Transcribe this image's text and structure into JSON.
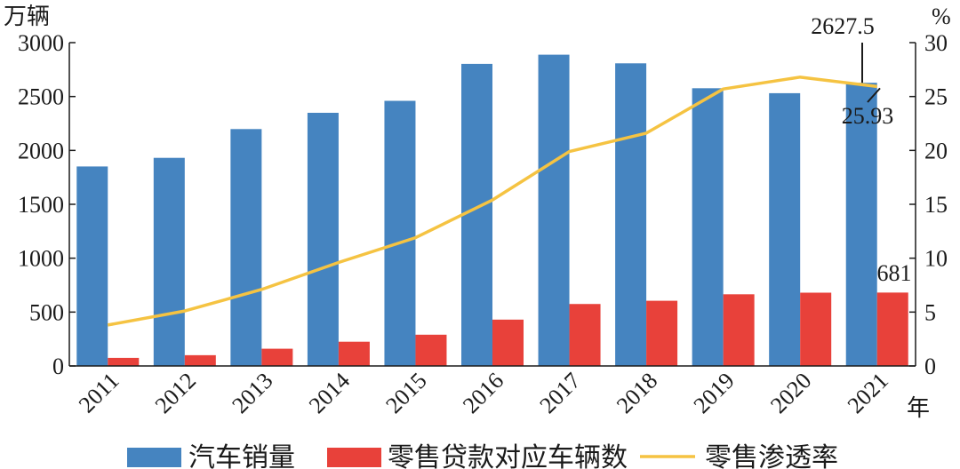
{
  "chart_data": {
    "type": "bar",
    "categories": [
      "2011",
      "2012",
      "2013",
      "2014",
      "2015",
      "2016",
      "2017",
      "2018",
      "2019",
      "2020",
      "2021"
    ],
    "series": [
      {
        "name": "汽车销量",
        "type": "bar",
        "axis": "left",
        "color": "#4584c0",
        "values": [
          1851,
          1931,
          2198,
          2349,
          2460,
          2803,
          2888,
          2808,
          2577,
          2531,
          2627.5
        ]
      },
      {
        "name": "零售贷款对应车辆数",
        "type": "bar",
        "axis": "left",
        "color": "#e8413a",
        "values": [
          75,
          100,
          160,
          225,
          290,
          430,
          575,
          605,
          665,
          680,
          681
        ]
      },
      {
        "name": "零售渗透率",
        "type": "line",
        "axis": "right",
        "color": "#f5c342",
        "values": [
          3.8,
          5.1,
          7.1,
          9.6,
          11.9,
          15.4,
          19.9,
          21.6,
          25.7,
          26.8,
          25.93
        ]
      }
    ],
    "y_left": {
      "unit": "万辆",
      "min": 0,
      "max": 3000,
      "ticks": [
        0,
        500,
        1000,
        1500,
        2000,
        2500,
        3000
      ]
    },
    "y_right": {
      "unit": "%",
      "min": 0,
      "max": 30,
      "ticks": [
        0,
        5,
        10,
        15,
        20,
        25,
        30
      ]
    },
    "x_unit": "年",
    "annotations": [
      {
        "text": "2627.5",
        "category": "2021",
        "series": "汽车销量"
      },
      {
        "text": "25.93",
        "category": "2021",
        "series": "零售渗透率"
      },
      {
        "text": "681",
        "category": "2021",
        "series": "零售贷款对应车辆数"
      }
    ],
    "legend": {
      "position": "bottom",
      "items": [
        {
          "label": "汽车销量",
          "color": "#4584c0",
          "kind": "box"
        },
        {
          "label": "零售贷款对应车辆数",
          "color": "#e8413a",
          "kind": "box"
        },
        {
          "label": "零售渗透率",
          "color": "#f5c342",
          "kind": "line"
        }
      ]
    },
    "grid": false
  }
}
